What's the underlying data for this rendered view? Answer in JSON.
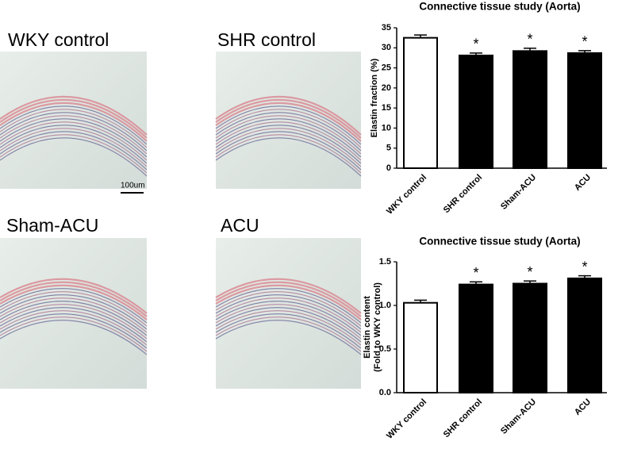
{
  "images": [
    {
      "label": "WKY control"
    },
    {
      "label": "SHR control"
    },
    {
      "label": "Sham-ACU"
    },
    {
      "label": "ACU"
    }
  ],
  "scale_bar": "100um",
  "chart_data": [
    {
      "type": "bar",
      "title": "Connective tissue study (Aorta)",
      "ylabel": [
        "Elastin fraction (%)"
      ],
      "categories": [
        "WKY control",
        "SHR control",
        "Sham-ACU",
        "ACU"
      ],
      "values": [
        32.5,
        28.1,
        29.2,
        28.7
      ],
      "errors": [
        0.7,
        0.6,
        0.7,
        0.6
      ],
      "colors": [
        "#ffffff",
        "#000000",
        "#000000",
        "#000000"
      ],
      "significance": [
        null,
        "*",
        "*",
        "*"
      ],
      "ylim": [
        0,
        35
      ],
      "yticks": [
        0,
        5,
        10,
        15,
        20,
        25,
        30,
        35
      ]
    },
    {
      "type": "bar",
      "title": "Connective tissue study (Aorta)",
      "ylabel": [
        "Elastin content",
        "(Fold to WKY control)"
      ],
      "categories": [
        "WKY control",
        "SHR control",
        "Sham-ACU",
        "ACU"
      ],
      "values": [
        1.03,
        1.24,
        1.25,
        1.31
      ],
      "errors": [
        0.03,
        0.03,
        0.03,
        0.03
      ],
      "colors": [
        "#ffffff",
        "#000000",
        "#000000",
        "#000000"
      ],
      "significance": [
        null,
        "*",
        "*",
        "*"
      ],
      "ylim": [
        0,
        1.5
      ],
      "yticks": [
        {
          "value": 0,
          "label": "0.0"
        },
        {
          "value": 0.5,
          "label": "0.5"
        },
        {
          "value": 1,
          "label": "1.0"
        },
        {
          "value": 1.5,
          "label": "1.5"
        }
      ]
    }
  ]
}
